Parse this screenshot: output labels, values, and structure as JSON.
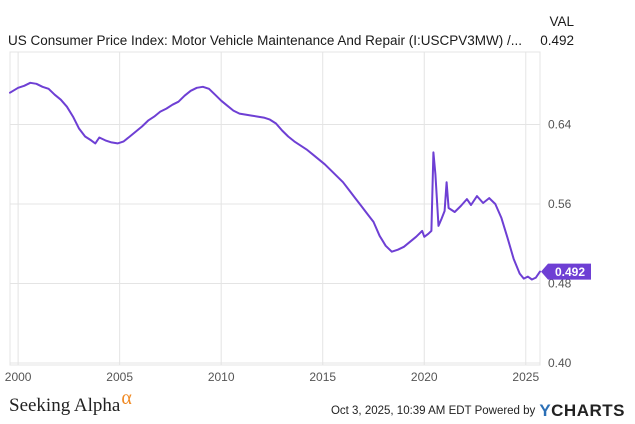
{
  "header": {
    "title": "US Consumer Price Index: Motor Vehicle Maintenance And Repair (I:USCPV3MW) /...",
    "val_label": "VAL",
    "val": "0.492"
  },
  "colors": {
    "line": "#6e3fd4",
    "grid": "#e4e4e4",
    "axis_text": "#555555",
    "badge_bg": "#6e3fd4",
    "badge_text": "#ffffff"
  },
  "footer": {
    "brand_text": "Seeking Alpha",
    "brand_symbol": "α",
    "timestamp": "Oct 3, 2025, 10:39 AM EDT Powered by",
    "ycharts_y": "Y",
    "ycharts_rest": "CHARTS"
  },
  "chart_data": {
    "type": "line",
    "title": "US Consumer Price Index: Motor Vehicle Maintenance And Repair (I:USCPV3MW) /...",
    "xlabel": "",
    "ylabel": "",
    "xlim": [
      1999.6,
      2025.7
    ],
    "ylim": [
      0.398,
      0.713
    ],
    "x_ticks": [
      2000,
      2005,
      2010,
      2015,
      2020,
      2025
    ],
    "y_ticks": [
      0.4,
      0.48,
      0.56,
      0.64
    ],
    "y_tick_labels": [
      "0.40",
      "0.48",
      "0.56",
      "0.64"
    ],
    "grid": true,
    "last_value_label": "0.492",
    "series": [
      {
        "points": [
          [
            1999.6,
            0.672
          ],
          [
            2000.0,
            0.677
          ],
          [
            2000.3,
            0.679
          ],
          [
            2000.6,
            0.682
          ],
          [
            2000.9,
            0.681
          ],
          [
            2001.2,
            0.678
          ],
          [
            2001.5,
            0.676
          ],
          [
            2001.8,
            0.67
          ],
          [
            2002.1,
            0.665
          ],
          [
            2002.4,
            0.658
          ],
          [
            2002.7,
            0.648
          ],
          [
            2003.0,
            0.636
          ],
          [
            2003.3,
            0.628
          ],
          [
            2003.6,
            0.624
          ],
          [
            2003.8,
            0.621
          ],
          [
            2004.0,
            0.627
          ],
          [
            2004.3,
            0.624
          ],
          [
            2004.6,
            0.622
          ],
          [
            2004.9,
            0.621
          ],
          [
            2005.2,
            0.623
          ],
          [
            2005.5,
            0.628
          ],
          [
            2005.8,
            0.633
          ],
          [
            2006.1,
            0.638
          ],
          [
            2006.4,
            0.644
          ],
          [
            2006.7,
            0.648
          ],
          [
            2007.0,
            0.653
          ],
          [
            2007.3,
            0.656
          ],
          [
            2007.6,
            0.66
          ],
          [
            2007.9,
            0.663
          ],
          [
            2008.2,
            0.669
          ],
          [
            2008.5,
            0.674
          ],
          [
            2008.8,
            0.677
          ],
          [
            2009.1,
            0.678
          ],
          [
            2009.4,
            0.676
          ],
          [
            2009.7,
            0.67
          ],
          [
            2010.0,
            0.664
          ],
          [
            2010.3,
            0.659
          ],
          [
            2010.6,
            0.654
          ],
          [
            2010.9,
            0.651
          ],
          [
            2011.2,
            0.65
          ],
          [
            2011.5,
            0.649
          ],
          [
            2011.8,
            0.648
          ],
          [
            2012.1,
            0.647
          ],
          [
            2012.4,
            0.645
          ],
          [
            2012.7,
            0.641
          ],
          [
            2013.0,
            0.634
          ],
          [
            2013.3,
            0.628
          ],
          [
            2013.6,
            0.623
          ],
          [
            2013.9,
            0.619
          ],
          [
            2014.2,
            0.615
          ],
          [
            2014.5,
            0.61
          ],
          [
            2014.8,
            0.605
          ],
          [
            2015.1,
            0.6
          ],
          [
            2015.4,
            0.594
          ],
          [
            2015.7,
            0.588
          ],
          [
            2016.0,
            0.582
          ],
          [
            2016.3,
            0.574
          ],
          [
            2016.6,
            0.566
          ],
          [
            2016.9,
            0.558
          ],
          [
            2017.2,
            0.55
          ],
          [
            2017.5,
            0.542
          ],
          [
            2017.8,
            0.528
          ],
          [
            2018.1,
            0.518
          ],
          [
            2018.4,
            0.512
          ],
          [
            2018.7,
            0.514
          ],
          [
            2019.0,
            0.517
          ],
          [
            2019.3,
            0.522
          ],
          [
            2019.6,
            0.527
          ],
          [
            2019.9,
            0.533
          ],
          [
            2020.0,
            0.527
          ],
          [
            2020.2,
            0.53
          ],
          [
            2020.35,
            0.533
          ],
          [
            2020.45,
            0.612
          ],
          [
            2020.55,
            0.59
          ],
          [
            2020.7,
            0.538
          ],
          [
            2020.85,
            0.545
          ],
          [
            2021.0,
            0.553
          ],
          [
            2021.1,
            0.582
          ],
          [
            2021.2,
            0.556
          ],
          [
            2021.5,
            0.552
          ],
          [
            2021.8,
            0.558
          ],
          [
            2022.1,
            0.565
          ],
          [
            2022.3,
            0.559
          ],
          [
            2022.6,
            0.568
          ],
          [
            2022.9,
            0.561
          ],
          [
            2023.2,
            0.566
          ],
          [
            2023.5,
            0.56
          ],
          [
            2023.8,
            0.546
          ],
          [
            2024.1,
            0.526
          ],
          [
            2024.4,
            0.505
          ],
          [
            2024.7,
            0.49
          ],
          [
            2024.9,
            0.485
          ],
          [
            2025.1,
            0.487
          ],
          [
            2025.3,
            0.484
          ],
          [
            2025.5,
            0.486
          ],
          [
            2025.7,
            0.492
          ]
        ]
      }
    ]
  }
}
